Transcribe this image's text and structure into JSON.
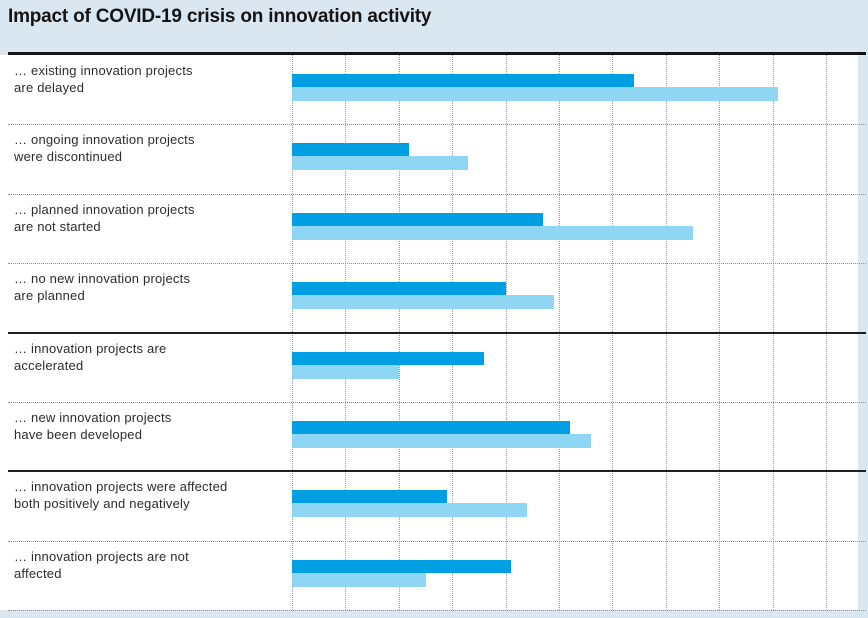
{
  "title": "Impact of COVID-19 crisis on innovation activity",
  "colors": {
    "page_background": "#dbe7f0",
    "panel_background": "#ffffff",
    "series1_dark_blue": "#009ee3",
    "series2_light_blue": "#8ed6f4",
    "title_and_rules": "#141414",
    "gridline_dotted": "#9b9b9b",
    "label_text": "#2c2c2c"
  },
  "chart_data": {
    "type": "bar",
    "orientation": "horizontal",
    "title": "Impact of COVID-19 crisis on innovation activity",
    "categories": [
      "… existing innovation projects are delayed",
      "… ongoing innovation projects were discontinued",
      "… planned innovation projects are not started",
      "… no new innovation projects are planned",
      "… innovation projects are accelerated",
      "… new innovation projects have been developed",
      "… innovation projects were affected both positively and negatively",
      "… innovation projects are not affected"
    ],
    "category_lines": [
      [
        "… existing innovation projects",
        "are delayed"
      ],
      [
        "… ongoing innovation projects",
        "were discontinued"
      ],
      [
        "… planned innovation projects",
        "are not started"
      ],
      [
        "… no new innovation projects",
        "are planned"
      ],
      [
        "… innovation projects are",
        "accelerated"
      ],
      [
        "… new innovation projects",
        "have been developed"
      ],
      [
        "… innovation projects were affected",
        "both positively and negatively"
      ],
      [
        "… innovation projects are not",
        "affected"
      ]
    ],
    "series": [
      {
        "name": "series-1-dark-blue",
        "color": "#009ee3",
        "values": [
          32,
          11,
          23.5,
          20,
          18,
          26,
          14.5,
          20.5
        ]
      },
      {
        "name": "series-2-light-blue",
        "color": "#8ed6f4",
        "values": [
          45.5,
          16.5,
          37.5,
          24.5,
          10,
          28,
          22,
          12.5
        ]
      }
    ],
    "xlim": [
      0,
      53
    ],
    "gridline_step": 5,
    "gridlines_at": [
      0,
      5,
      10,
      15,
      20,
      25,
      30,
      35,
      40,
      45,
      50
    ],
    "axis_tick_labels_visible": false,
    "legend_position": "none",
    "grid": "vertical dotted lines",
    "row_separators": "dotted within groups, solid between groups",
    "group_solid_separator_after_rows": [
      3,
      5
    ]
  }
}
